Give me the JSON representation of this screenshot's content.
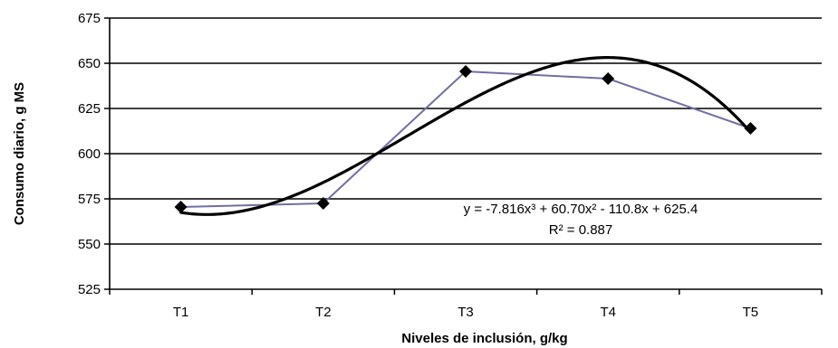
{
  "chart_data": {
    "type": "line",
    "categories": [
      "T1",
      "T2",
      "T3",
      "T4",
      "T5"
    ],
    "series": [
      {
        "values": [
          570.5,
          572.5,
          645.5,
          641.5,
          614
        ]
      }
    ],
    "trendline": {
      "type": "polynomial-3",
      "coefficients": {
        "a3": -7.816,
        "a2": 60.7,
        "a1": -110.8,
        "a0": 625.4
      },
      "equation": "y = -7.816x³ + 60.70x² - 110.8x + 625.4",
      "r_squared_label": "R² = 0.887"
    },
    "xlabel": "Niveles de inclusión, g/kg",
    "ylabel": "Consumo diario, g MS",
    "ylim": [
      525,
      675
    ],
    "yticks": [
      525,
      550,
      575,
      600,
      625,
      650,
      675
    ],
    "grid": "horizontal",
    "colors": {
      "series": "#6f6fa3",
      "trendline": "#000000",
      "marker": "#000000",
      "grid": "#000000"
    }
  }
}
